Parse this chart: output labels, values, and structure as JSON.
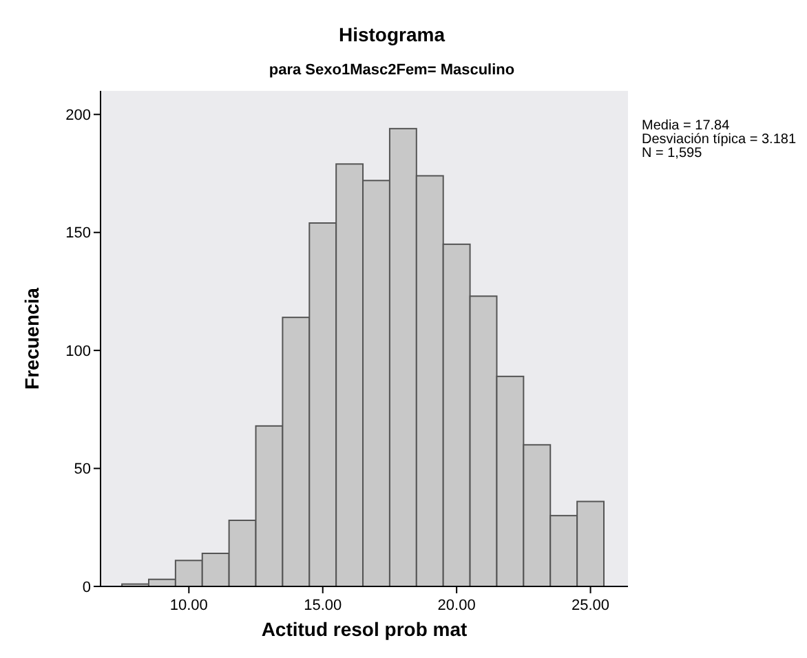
{
  "chart_data": {
    "type": "histogram",
    "title": "Histograma",
    "subtitle": "para Sexo1Masc2Fem= Masculino",
    "xlabel": "Actitud resol prob mat",
    "ylabel": "Frecuencia",
    "bins": [
      7.5,
      8.5,
      9.5,
      10.5,
      11.5,
      12.5,
      13.5,
      14.5,
      15.5,
      16.5,
      17.5,
      18.5,
      19.5,
      20.5,
      21.5,
      22.5,
      23.5,
      24.5,
      25.5
    ],
    "values": [
      1,
      3,
      11,
      14,
      28,
      68,
      114,
      154,
      179,
      172,
      194,
      174,
      145,
      123,
      89,
      60,
      30,
      36
    ],
    "color": "#c8c8c8",
    "xlim": [
      6.7,
      26.4
    ],
    "xticks": [
      {
        "value": 10,
        "label": "10.00"
      },
      {
        "value": 15,
        "label": "15.00"
      },
      {
        "value": 20,
        "label": "20.00"
      },
      {
        "value": 25,
        "label": "25.00"
      }
    ],
    "ylim": [
      0,
      210
    ],
    "yticks": [
      0,
      50,
      100,
      150,
      200
    ],
    "annotations": [
      "Media = 17.84",
      "Desviación típica = 3.181",
      "N = 1,595"
    ],
    "grid": false
  }
}
